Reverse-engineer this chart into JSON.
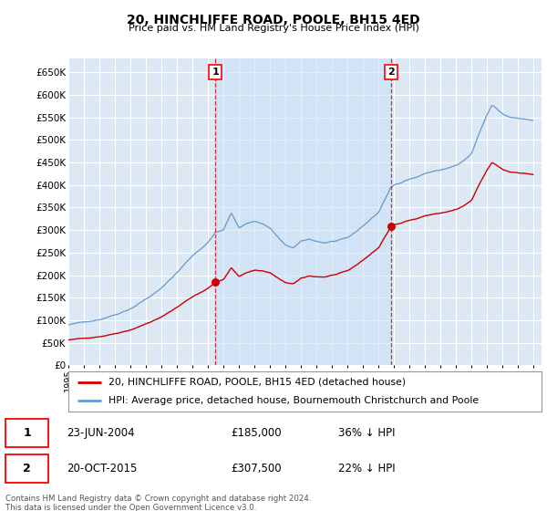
{
  "title": "20, HINCHLIFFE ROAD, POOLE, BH15 4ED",
  "subtitle": "Price paid vs. HM Land Registry's House Price Index (HPI)",
  "background_color": "#dce9f5",
  "grid_color": "#c8d8e8",
  "red_line_color": "#cc0000",
  "blue_line_color": "#6699cc",
  "sale1_date": "23-JUN-2004",
  "sale1_price": 185000,
  "sale1_pct": "36% ↓ HPI",
  "sale1_year": 2004.47,
  "sale2_date": "20-OCT-2015",
  "sale2_price": 307500,
  "sale2_pct": "22% ↓ HPI",
  "sale2_year": 2015.8,
  "legend_label_red": "20, HINCHLIFFE ROAD, POOLE, BH15 4ED (detached house)",
  "legend_label_blue": "HPI: Average price, detached house, Bournemouth Christchurch and Poole",
  "footer_text": "Contains HM Land Registry data © Crown copyright and database right 2024.\nThis data is licensed under the Open Government Licence v3.0.",
  "ylim": [
    0,
    680000
  ],
  "xlim_start": 1995,
  "xlim_end": 2025.5
}
